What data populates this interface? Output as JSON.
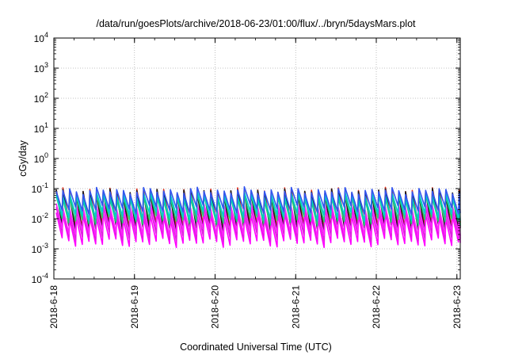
{
  "chart_data": {
    "type": "line",
    "title": "/data/run/goesPlots/archive/2018-06-23/01:00/flux/../bryn/5daysMars.plot",
    "xlabel": "Coordinated Universal Time (UTC)",
    "ylabel": "cGy/day",
    "yscale": "log",
    "ylim": [
      0.0001,
      10000
    ],
    "xlim": [
      "2018-06-18T00:00",
      "2018-06-23T01:00"
    ],
    "grid": true,
    "y_ticks": [
      {
        "base": "10",
        "exp": "-4"
      },
      {
        "base": "10",
        "exp": "-3"
      },
      {
        "base": "10",
        "exp": "-2"
      },
      {
        "base": "10",
        "exp": "-1"
      },
      {
        "base": "10",
        "exp": "0"
      },
      {
        "base": "10",
        "exp": "1"
      },
      {
        "base": "10",
        "exp": "2"
      },
      {
        "base": "10",
        "exp": "3"
      },
      {
        "base": "10",
        "exp": "4"
      }
    ],
    "x_ticks": [
      "2018-6-18",
      "2018-6-19",
      "2018-6-20",
      "2018-6-21",
      "2018-6-22",
      "2018-6-23"
    ],
    "orbit_period_hours": 2,
    "series": [
      {
        "color": "#e0301e",
        "peak": 0.082,
        "trough": 0.0065
      },
      {
        "color": "#1a1a1a",
        "peak": 0.075,
        "trough": 0.0045
      },
      {
        "color": "#ff00ff",
        "peak": 0.012,
        "trough": 0.0016
      },
      {
        "color": "#e020e0",
        "peak": 0.018,
        "trough": 0.0025
      },
      {
        "color": "#ff22ff",
        "peak": 0.025,
        "trough": 0.0035
      },
      {
        "color": "#22cc77",
        "peak": 0.05,
        "trough": 0.0085
      },
      {
        "color": "#00cccc",
        "peak": 0.06,
        "trough": 0.012
      },
      {
        "color": "#3355ee",
        "peak": 0.085,
        "trough": 0.02
      }
    ]
  }
}
